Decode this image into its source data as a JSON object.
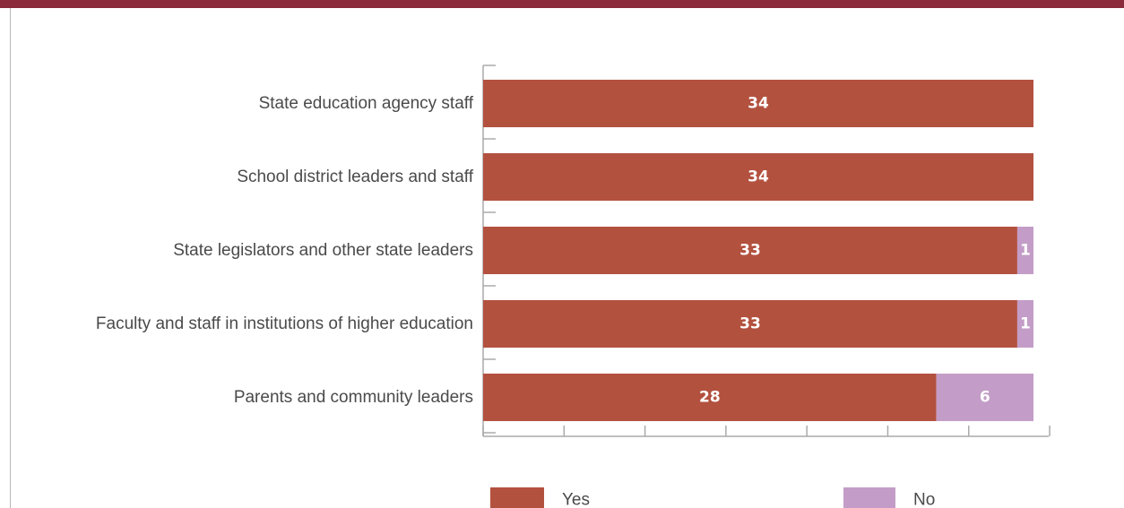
{
  "colors": {
    "header_band": "#8b2a3a",
    "yes": "#b3513f",
    "no": "#c39dc7",
    "axis": "#aaaaaa"
  },
  "chart_data": {
    "type": "bar",
    "orientation": "horizontal",
    "stacked": true,
    "categories": [
      "State education agency staff",
      "School district leaders and staff",
      "State legislators and other state leaders",
      "Faculty and staff in institutions of higher education",
      "Parents and community leaders"
    ],
    "series": [
      {
        "name": "Yes",
        "values": [
          34,
          34,
          33,
          33,
          28
        ]
      },
      {
        "name": "No",
        "values": [
          0,
          0,
          1,
          1,
          6
        ]
      }
    ],
    "xlim": [
      0,
      35
    ],
    "x_tick_step": 5,
    "x_tick_labels_shown": false,
    "grid": false,
    "legend_position": "bottom"
  }
}
